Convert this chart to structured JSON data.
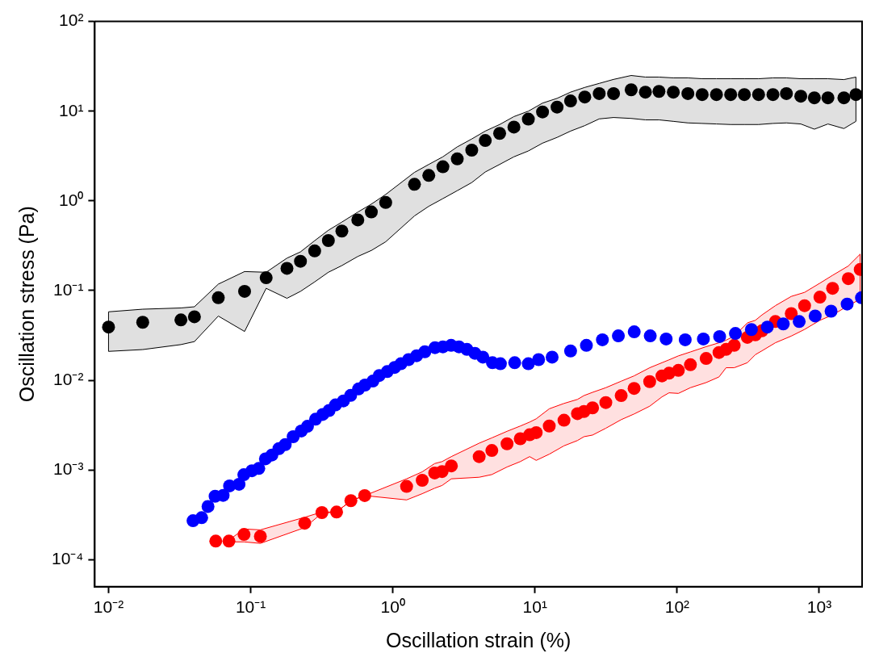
{
  "chart_data": {
    "type": "scatter",
    "xlabel": "Oscillation strain (%)",
    "ylabel": "Oscillation stress (Pa)",
    "log": "xy",
    "grid": false,
    "legend": false,
    "marker": "circle",
    "xlim": [
      0.008,
      2000
    ],
    "ylim": [
      5e-05,
      100
    ],
    "xticks": [
      {
        "value": 0.01,
        "label": "10⁻²"
      },
      {
        "value": 0.1,
        "label": "10⁻¹"
      },
      {
        "value": 1,
        "label": "10⁰"
      },
      {
        "value": 10,
        "label": "10¹"
      },
      {
        "value": 100,
        "label": "10²"
      },
      {
        "value": 1000,
        "label": "10³"
      }
    ],
    "yticks": [
      {
        "value": 0.0001,
        "label": "10⁻⁴"
      },
      {
        "value": 0.001,
        "label": "10⁻³"
      },
      {
        "value": 0.01,
        "label": "10⁻²"
      },
      {
        "value": 0.1,
        "label": "10⁻¹"
      },
      {
        "value": 1,
        "label": "10⁰"
      },
      {
        "value": 10,
        "label": "10¹"
      },
      {
        "value": 100,
        "label": "10²"
      }
    ],
    "series": [
      {
        "color": "#000000",
        "x": [
          0.01,
          0.0174,
          0.0323,
          0.0402,
          0.0592,
          0.0906,
          0.1285,
          0.18,
          0.224,
          0.282,
          0.352,
          0.438,
          0.567,
          0.706,
          0.891,
          1.42,
          1.79,
          2.25,
          2.84,
          3.59,
          4.47,
          5.64,
          7.11,
          8.98,
          11.3,
          14.3,
          17.8,
          22.4,
          28.3,
          35.7,
          47.5,
          59.8,
          74.5,
          94,
          119,
          150,
          189,
          238,
          297,
          374,
          472,
          587,
          741,
          923,
          1150,
          1490,
          1810
        ],
        "values": [
          0.0392,
          0.0443,
          0.0471,
          0.0511,
          0.0832,
          0.098,
          0.139,
          0.177,
          0.212,
          0.277,
          0.361,
          0.461,
          0.614,
          0.752,
          0.96,
          1.53,
          1.92,
          2.4,
          2.94,
          3.68,
          4.71,
          5.65,
          6.65,
          8.16,
          9.8,
          11.1,
          13,
          14.4,
          15.7,
          15.7,
          17.3,
          16.3,
          16.6,
          16.3,
          15.7,
          15.3,
          15.3,
          15.3,
          15.3,
          15.3,
          15.3,
          15.7,
          14.7,
          14.1,
          14.1,
          14.1,
          15.3
        ],
        "upper": [
          0.058,
          0.062,
          0.064,
          0.066,
          0.118,
          0.163,
          0.16,
          0.23,
          0.27,
          0.36,
          0.47,
          0.58,
          0.75,
          0.92,
          1.18,
          2.08,
          2.55,
          3.1,
          4,
          4.9,
          6,
          7.1,
          8.7,
          10,
          12.3,
          13.9,
          16.3,
          18.4,
          20.4,
          22.6,
          25,
          24,
          24,
          23.5,
          23.5,
          23,
          23,
          23,
          23,
          23,
          23.5,
          23.5,
          23,
          23,
          23,
          22.5,
          24
        ],
        "lower": [
          0.021,
          0.022,
          0.025,
          0.027,
          0.052,
          0.035,
          0.106,
          0.082,
          0.098,
          0.125,
          0.16,
          0.19,
          0.24,
          0.28,
          0.35,
          0.68,
          0.87,
          1.06,
          1.3,
          1.6,
          2.1,
          2.55,
          3.1,
          3.6,
          4.4,
          5.1,
          6,
          6.9,
          8.2,
          8.5,
          8.3,
          8,
          8,
          7.7,
          7.4,
          7.3,
          7.2,
          7.1,
          7.1,
          7.1,
          7.3,
          7.4,
          7.2,
          6.3,
          7.2,
          6.4,
          7.7
        ]
      },
      {
        "color": "#0000ff",
        "x": [
          0.0393,
          0.0452,
          0.0501,
          0.0562,
          0.064,
          0.071,
          0.0828,
          0.0895,
          0.102,
          0.114,
          0.127,
          0.141,
          0.158,
          0.175,
          0.199,
          0.227,
          0.251,
          0.286,
          0.321,
          0.356,
          0.395,
          0.449,
          0.505,
          0.574,
          0.637,
          0.724,
          0.803,
          0.914,
          1.03,
          1.14,
          1.29,
          1.47,
          1.68,
          1.98,
          2.25,
          2.57,
          2.92,
          3.32,
          3.78,
          4.3,
          5.02,
          5.71,
          7.2,
          8.98,
          10.6,
          13.2,
          17.8,
          23,
          29.8,
          38.6,
          49.9,
          64.7,
          83.7,
          114,
          153,
          199,
          257,
          333,
          431,
          558,
          722,
          935,
          1210,
          1570,
          1980
        ],
        "values": [
          0.000272,
          0.000294,
          0.000392,
          0.00051,
          0.000521,
          0.000665,
          0.000693,
          0.000885,
          0.00098,
          0.00104,
          0.00133,
          0.00147,
          0.00173,
          0.00192,
          0.00235,
          0.00272,
          0.00307,
          0.00368,
          0.00416,
          0.00461,
          0.00532,
          0.00589,
          0.00679,
          0.008,
          0.00885,
          0.0098,
          0.0113,
          0.0125,
          0.0139,
          0.0153,
          0.017,
          0.0188,
          0.0208,
          0.0231,
          0.0236,
          0.0245,
          0.0236,
          0.0221,
          0.02,
          0.0181,
          0.0157,
          0.0153,
          0.0157,
          0.0153,
          0.017,
          0.0181,
          0.0212,
          0.0245,
          0.0283,
          0.0313,
          0.0347,
          0.0313,
          0.0289,
          0.0283,
          0.0289,
          0.0307,
          0.0333,
          0.0368,
          0.0392,
          0.0425,
          0.0452,
          0.0521,
          0.0589,
          0.0708,
          0.0832
        ]
      },
      {
        "color": "#ff0000",
        "x": [
          0.0568,
          0.0703,
          0.0898,
          0.117,
          0.24,
          0.317,
          0.402,
          0.507,
          0.634,
          1.25,
          1.61,
          1.97,
          2.22,
          2.58,
          4.05,
          4.97,
          6.36,
          7.88,
          9.17,
          10.2,
          12.6,
          16,
          19.9,
          22.1,
          25.4,
          31.5,
          40.4,
          49.8,
          64.1,
          78.2,
          87.7,
          102,
          124,
          160,
          197,
          221,
          252,
          312,
          355,
          395,
          491,
          635,
          788,
          1010,
          1240,
          1600,
          1940
        ],
        "values": [
          0.000161,
          0.000161,
          0.000191,
          0.000182,
          0.000255,
          0.000335,
          0.00034,
          0.000455,
          0.000518,
          0.000656,
          0.000767,
          0.000927,
          0.00096,
          0.00111,
          0.00141,
          0.00165,
          0.00196,
          0.00223,
          0.00247,
          0.00261,
          0.00309,
          0.00359,
          0.00425,
          0.00449,
          0.00493,
          0.00565,
          0.00675,
          0.00811,
          0.00966,
          0.0112,
          0.012,
          0.0129,
          0.0149,
          0.0175,
          0.0204,
          0.0221,
          0.0245,
          0.0301,
          0.0321,
          0.0356,
          0.0452,
          0.0554,
          0.0679,
          0.0845,
          0.106,
          0.136,
          0.172
        ],
        "upper": [
          null,
          0.000165,
          0.00022,
          0.000215,
          0.000297,
          0.00034,
          0.00034,
          0.000455,
          0.000518,
          0.000797,
          0.000954,
          0.00118,
          0.00124,
          0.00141,
          0.00199,
          0.00228,
          0.0027,
          0.00309,
          0.00342,
          0.00372,
          0.00481,
          0.00552,
          0.00612,
          0.00675,
          0.00734,
          0.00827,
          0.00977,
          0.0112,
          0.0138,
          0.0157,
          0.0169,
          0.0187,
          0.0207,
          0.0237,
          0.0262,
          0.028,
          0.0311,
          0.0437,
          0.0466,
          0.0535,
          0.0679,
          0.0861,
          0.0955,
          0.121,
          0.148,
          0.188,
          0.255
        ],
        "lower": [
          null,
          0.000158,
          0.000158,
          0.000152,
          0.000228,
          0.00033,
          0.00034,
          0.000455,
          0.000518,
          0.000464,
          0.000544,
          0.000627,
          0.000672,
          0.000797,
          0.00083,
          0.000889,
          0.00108,
          0.00124,
          0.00141,
          0.00128,
          0.0015,
          0.00186,
          0.00213,
          0.00235,
          0.00245,
          0.00292,
          0.00364,
          0.00421,
          0.00514,
          0.00653,
          0.00725,
          0.00714,
          0.00827,
          0.00943,
          0.0109,
          0.0138,
          0.0138,
          0.0157,
          0.0193,
          0.0213,
          0.0262,
          0.0311,
          0.0369,
          0.0466,
          0.0535,
          0.0679,
          0.0803
        ]
      }
    ]
  }
}
